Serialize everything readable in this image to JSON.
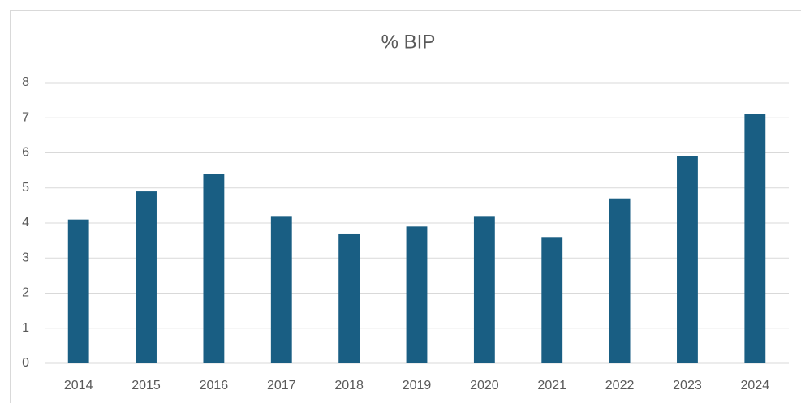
{
  "chart_data": {
    "type": "bar",
    "title": "% BIP",
    "categories": [
      "2014",
      "2015",
      "2016",
      "2017",
      "2018",
      "2019",
      "2020",
      "2021",
      "2022",
      "2023",
      "2024"
    ],
    "values": [
      4.1,
      4.9,
      5.4,
      4.2,
      3.7,
      3.9,
      4.2,
      3.6,
      4.7,
      5.9,
      7.1
    ],
    "color": "#195e83",
    "ylim": [
      0,
      8
    ],
    "yticks": [
      0,
      1,
      2,
      3,
      4,
      5,
      6,
      7,
      8
    ],
    "grid": true
  }
}
